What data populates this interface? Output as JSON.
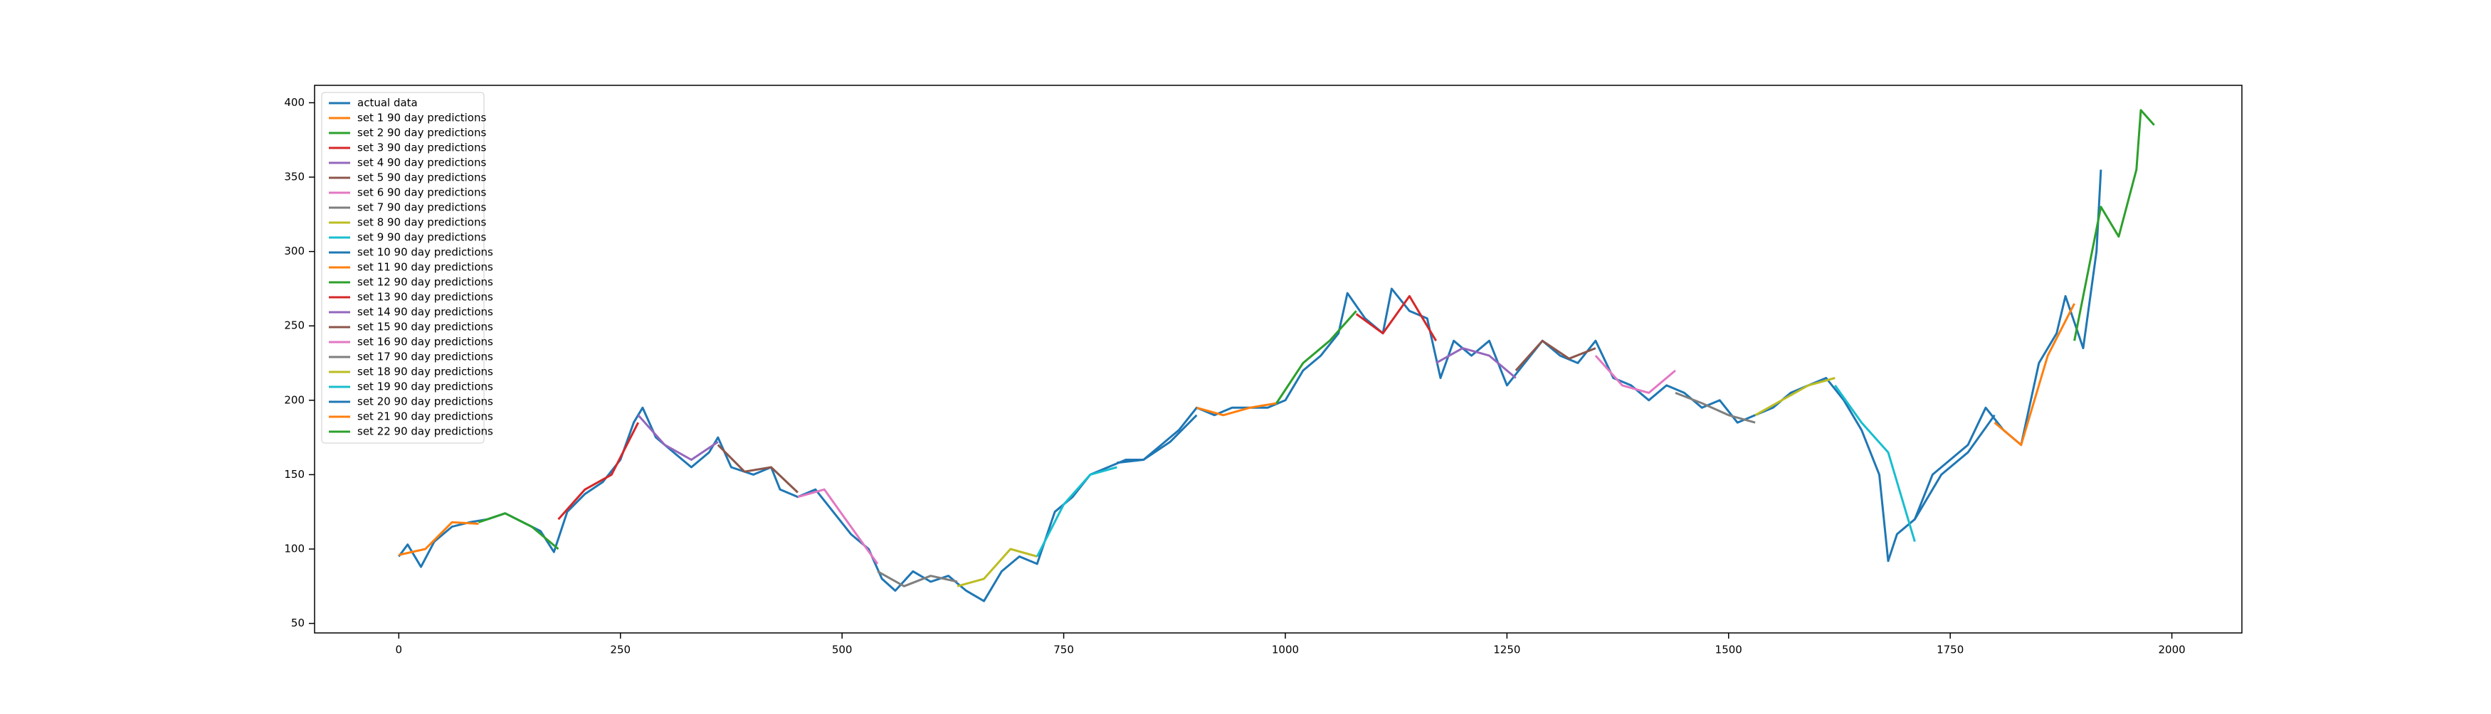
{
  "chart_data": {
    "type": "line",
    "xlim": [
      -95,
      2079
    ],
    "ylim": [
      43.6,
      411.7
    ],
    "xticks": [
      0,
      250,
      500,
      750,
      1000,
      1250,
      1500,
      1750,
      2000
    ],
    "yticks": [
      50,
      100,
      150,
      200,
      250,
      300,
      350,
      400
    ],
    "legend": "upper left",
    "series": [
      {
        "name": "actual data",
        "color": "#1f77b4",
        "x": [
          0,
          10,
          25,
          40,
          60,
          80,
          100,
          120,
          140,
          160,
          175,
          190,
          210,
          230,
          250,
          265,
          275,
          290,
          310,
          330,
          350,
          360,
          375,
          400,
          420,
          430,
          450,
          470,
          490,
          510,
          530,
          545,
          560,
          580,
          600,
          620,
          640,
          660,
          680,
          700,
          720,
          740,
          760,
          780,
          800,
          820,
          840,
          860,
          880,
          900,
          920,
          940,
          960,
          980,
          1000,
          1020,
          1040,
          1060,
          1070,
          1090,
          1110,
          1120,
          1140,
          1160,
          1175,
          1190,
          1210,
          1230,
          1250,
          1270,
          1290,
          1310,
          1330,
          1350,
          1370,
          1390,
          1410,
          1430,
          1450,
          1470,
          1490,
          1510,
          1530,
          1550,
          1570,
          1590,
          1610,
          1630,
          1650,
          1670,
          1680,
          1690,
          1710,
          1730,
          1750,
          1770,
          1790,
          1810,
          1830,
          1850,
          1870,
          1880,
          1900,
          1915,
          1920
        ],
        "values": [
          95,
          103,
          88,
          105,
          115,
          118,
          120,
          124,
          118,
          112,
          98,
          125,
          137,
          145,
          160,
          185,
          195,
          175,
          165,
          155,
          165,
          175,
          155,
          150,
          155,
          140,
          135,
          140,
          125,
          110,
          100,
          80,
          72,
          85,
          78,
          82,
          72,
          65,
          85,
          95,
          90,
          125,
          135,
          150,
          155,
          160,
          160,
          170,
          180,
          195,
          190,
          195,
          195,
          195,
          200,
          220,
          230,
          245,
          272,
          255,
          245,
          275,
          260,
          255,
          215,
          240,
          230,
          240,
          210,
          225,
          240,
          230,
          225,
          240,
          215,
          210,
          200,
          210,
          205,
          195,
          200,
          185,
          190,
          195,
          205,
          210,
          215,
          200,
          180,
          150,
          92,
          110,
          120,
          150,
          160,
          170,
          195,
          180,
          170,
          225,
          245,
          270,
          235,
          300,
          355
        ]
      },
      {
        "name": "set 1 90 day predictions",
        "color": "#ff7f0e",
        "x": [
          0,
          30,
          60,
          90
        ],
        "values": [
          96,
          100,
          118,
          117
        ]
      },
      {
        "name": "set 2 90 day predictions",
        "color": "#2ca02c",
        "x": [
          90,
          120,
          150,
          180
        ],
        "values": [
          118,
          124,
          115,
          100
        ]
      },
      {
        "name": "set 3 90 day predictions",
        "color": "#d62728",
        "x": [
          180,
          210,
          240,
          270
        ],
        "values": [
          120,
          140,
          150,
          185
        ]
      },
      {
        "name": "set 4 90 day predictions",
        "color": "#9467bd",
        "x": [
          270,
          300,
          330,
          360
        ],
        "values": [
          190,
          170,
          160,
          172
        ]
      },
      {
        "name": "set 5 90 day predictions",
        "color": "#8c564b",
        "x": [
          360,
          390,
          420,
          450
        ],
        "values": [
          170,
          152,
          155,
          138
        ]
      },
      {
        "name": "set 6 90 day predictions",
        "color": "#e377c2",
        "x": [
          450,
          480,
          510,
          540
        ],
        "values": [
          135,
          140,
          115,
          90
        ]
      },
      {
        "name": "set 7 90 day predictions",
        "color": "#7f7f7f",
        "x": [
          540,
          570,
          600,
          630
        ],
        "values": [
          85,
          75,
          82,
          78
        ]
      },
      {
        "name": "set 8 90 day predictions",
        "color": "#bcbd22",
        "x": [
          630,
          660,
          690,
          720
        ],
        "values": [
          75,
          80,
          100,
          95
        ]
      },
      {
        "name": "set 9 90 day predictions",
        "color": "#17becf",
        "x": [
          720,
          750,
          780,
          810
        ],
        "values": [
          95,
          130,
          150,
          155
        ]
      },
      {
        "name": "set 10 90 day predictions",
        "color": "#1f77b4",
        "x": [
          810,
          840,
          870,
          900
        ],
        "values": [
          158,
          160,
          172,
          190
        ]
      },
      {
        "name": "set 11 90 day predictions",
        "color": "#ff7f0e",
        "x": [
          900,
          930,
          960,
          990
        ],
        "values": [
          195,
          190,
          195,
          198
        ]
      },
      {
        "name": "set 12 90 day predictions",
        "color": "#2ca02c",
        "x": [
          990,
          1020,
          1050,
          1080
        ],
        "values": [
          198,
          225,
          240,
          260
        ]
      },
      {
        "name": "set 13 90 day predictions",
        "color": "#d62728",
        "x": [
          1080,
          1110,
          1140,
          1170
        ],
        "values": [
          258,
          245,
          270,
          240
        ]
      },
      {
        "name": "set 14 90 day predictions",
        "color": "#9467bd",
        "x": [
          1170,
          1200,
          1230,
          1260
        ],
        "values": [
          225,
          235,
          230,
          215
        ]
      },
      {
        "name": "set 15 90 day predictions",
        "color": "#8c564b",
        "x": [
          1260,
          1290,
          1320,
          1350
        ],
        "values": [
          220,
          240,
          228,
          235
        ]
      },
      {
        "name": "set 16 90 day predictions",
        "color": "#e377c2",
        "x": [
          1350,
          1380,
          1410,
          1440
        ],
        "values": [
          230,
          210,
          205,
          220
        ]
      },
      {
        "name": "set 17 90 day predictions",
        "color": "#7f7f7f",
        "x": [
          1440,
          1470,
          1500,
          1530
        ],
        "values": [
          205,
          198,
          190,
          185
        ]
      },
      {
        "name": "set 18 90 day predictions",
        "color": "#bcbd22",
        "x": [
          1530,
          1560,
          1590,
          1620
        ],
        "values": [
          190,
          200,
          210,
          215
        ]
      },
      {
        "name": "set 19 90 day predictions",
        "color": "#17becf",
        "x": [
          1620,
          1650,
          1680,
          1710
        ],
        "values": [
          210,
          185,
          165,
          105
        ]
      },
      {
        "name": "set 20 90 day predictions",
        "color": "#1f77b4",
        "x": [
          1710,
          1740,
          1770,
          1800
        ],
        "values": [
          120,
          150,
          165,
          190
        ]
      },
      {
        "name": "set 21 90 day predictions",
        "color": "#ff7f0e",
        "x": [
          1800,
          1830,
          1860,
          1890
        ],
        "values": [
          185,
          170,
          230,
          265
        ]
      },
      {
        "name": "set 22 90 day predictions",
        "color": "#2ca02c",
        "x": [
          1890,
          1920,
          1940,
          1960,
          1965,
          1980
        ],
        "values": [
          240,
          330,
          310,
          355,
          395,
          385
        ]
      }
    ]
  }
}
